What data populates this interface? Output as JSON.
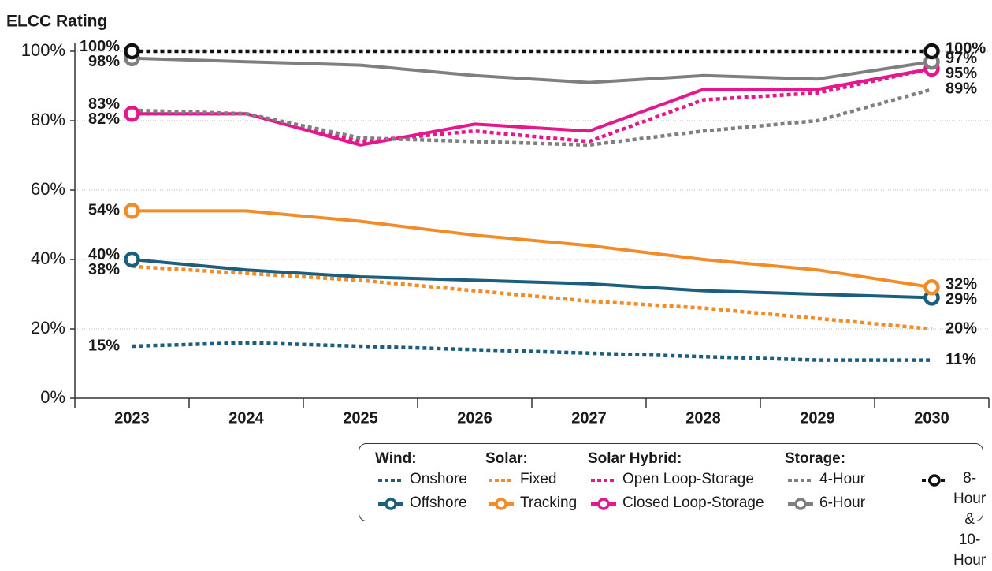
{
  "chart_data": {
    "type": "line",
    "y_label": "ELCC Rating",
    "categories": [
      "2023",
      "2024",
      "2025",
      "2026",
      "2027",
      "2028",
      "2029",
      "2030"
    ],
    "ylim": [
      0,
      100
    ],
    "yticks": [
      {
        "value": 0,
        "label": "0%"
      },
      {
        "value": 20,
        "label": "20%"
      },
      {
        "value": 40,
        "label": "40%"
      },
      {
        "value": 60,
        "label": "60%"
      },
      {
        "value": 80,
        "label": "80%"
      },
      {
        "value": 100,
        "label": "100%"
      }
    ],
    "grid": true,
    "legend_groups": [
      "Wind:",
      "Solar:",
      "Solar Hybrid:",
      "Storage:"
    ],
    "series": [
      {
        "name": "Onshore",
        "color": "#1b5e7e",
        "style": "dotted",
        "end_markers": false,
        "values": [
          15,
          16,
          15,
          14,
          13,
          12,
          11,
          11
        ],
        "value_labels": [
          "15%",
          null,
          null,
          null,
          null,
          null,
          null,
          "11%"
        ]
      },
      {
        "name": "Offshore",
        "color": "#1b5e7e",
        "style": "solid",
        "end_markers": true,
        "values": [
          40,
          37,
          35,
          34,
          33,
          31,
          30,
          29
        ],
        "value_labels": [
          "40%",
          null,
          null,
          null,
          null,
          null,
          null,
          "29%"
        ]
      },
      {
        "name": "Fixed",
        "color": "#f28c28",
        "style": "dotted",
        "end_markers": false,
        "values": [
          38,
          36,
          34,
          31,
          28,
          26,
          23,
          20
        ],
        "value_labels": [
          "38%",
          null,
          null,
          null,
          null,
          null,
          null,
          "20%"
        ]
      },
      {
        "name": "Tracking",
        "color": "#f28c28",
        "style": "solid",
        "end_markers": true,
        "values": [
          54,
          54,
          51,
          47,
          44,
          40,
          37,
          32
        ],
        "value_labels": [
          "54%",
          null,
          null,
          null,
          null,
          null,
          null,
          "32%"
        ]
      },
      {
        "name": "Open Loop-Storage",
        "color": "#e6168c",
        "style": "dotted",
        "end_markers": false,
        "values": [
          82,
          82,
          74,
          77,
          74,
          86,
          88,
          95
        ],
        "value_labels": [
          null,
          null,
          null,
          null,
          null,
          null,
          null,
          null
        ]
      },
      {
        "name": "Closed Loop-Storage",
        "color": "#e6168c",
        "style": "solid",
        "end_markers": true,
        "values": [
          82,
          82,
          73,
          79,
          77,
          89,
          89,
          95
        ],
        "value_labels": [
          "82%",
          null,
          null,
          null,
          null,
          null,
          null,
          "95%"
        ]
      },
      {
        "name": "4-Hour",
        "color": "#7f7f80",
        "style": "dotted",
        "end_markers": false,
        "values": [
          83,
          82,
          75,
          74,
          73,
          77,
          80,
          89
        ],
        "value_labels": [
          "83%",
          null,
          null,
          null,
          null,
          null,
          null,
          "89%"
        ]
      },
      {
        "name": "6-Hour",
        "color": "#7f7f80",
        "style": "solid",
        "end_markers": true,
        "values": [
          98,
          97,
          96,
          93,
          91,
          93,
          92,
          97
        ],
        "value_labels": [
          "98%",
          null,
          null,
          null,
          null,
          null,
          null,
          "97%"
        ]
      },
      {
        "name": "8-Hour & 10-Hour",
        "color": "#111111",
        "style": "dotted",
        "end_markers": true,
        "values": [
          100,
          100,
          100,
          100,
          100,
          100,
          100,
          100
        ],
        "value_labels": [
          "100%",
          null,
          null,
          null,
          null,
          null,
          null,
          "100%"
        ]
      }
    ]
  }
}
